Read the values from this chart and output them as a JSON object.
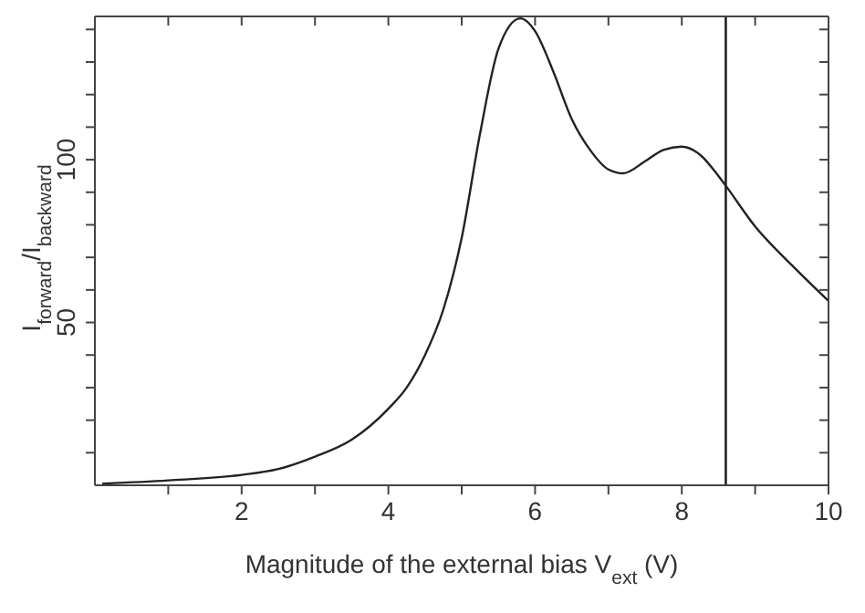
{
  "chart_data": {
    "type": "line",
    "xlabel": "Magnitude of the external bias V$_{ext}$ (V)",
    "ylabel": "I$_{forward}$/I$_{backward}$",
    "x": [
      0.1,
      1,
      2,
      2.5,
      3,
      3.5,
      4,
      4.25,
      4.5,
      4.75,
      5,
      5.25,
      5.5,
      5.8,
      6,
      6.25,
      6.5,
      6.75,
      7,
      7.2,
      7.5,
      7.75,
      8,
      8.25,
      8.5,
      8.6,
      9,
      9.5,
      10
    ],
    "series": [
      {
        "color": "#222222",
        "values": [
          0.5,
          1.5,
          3.2,
          5,
          8.8,
          14,
          23.5,
          30,
          40,
          54,
          76,
          108,
          134,
          143.4,
          139.5,
          127,
          112.5,
          103,
          97,
          95.8,
          99.5,
          103,
          104,
          101.5,
          95,
          92,
          79.5,
          67.6,
          56.6
        ]
      }
    ],
    "xlim": [
      0,
      10
    ],
    "ylim": [
      0,
      144
    ],
    "xticks": [
      {
        "value": 1,
        "label": null
      },
      2,
      {
        "value": 3,
        "label": null
      },
      4,
      {
        "value": 5,
        "label": null
      },
      6,
      {
        "value": 7,
        "label": null
      },
      8,
      {
        "value": 9,
        "label": null
      },
      10
    ],
    "yticks": [
      {
        "value": 10,
        "label": null
      },
      {
        "value": 20,
        "label": null
      },
      {
        "value": 30,
        "label": null
      },
      {
        "value": 40,
        "label": null
      },
      50,
      {
        "value": 60,
        "label": null
      },
      {
        "value": 70,
        "label": null
      },
      {
        "value": 80,
        "label": null
      },
      {
        "value": 90,
        "label": null
      },
      100,
      {
        "value": 110,
        "label": null
      },
      {
        "value": 120,
        "label": null
      },
      {
        "value": 130,
        "label": null
      },
      {
        "value": 140,
        "label": null
      }
    ],
    "ref_lines": [
      {
        "axis": "x",
        "value": 8.6,
        "color": "#222222"
      }
    ],
    "grid": false,
    "legend": false,
    "marker": "none",
    "line_style": "solid"
  }
}
